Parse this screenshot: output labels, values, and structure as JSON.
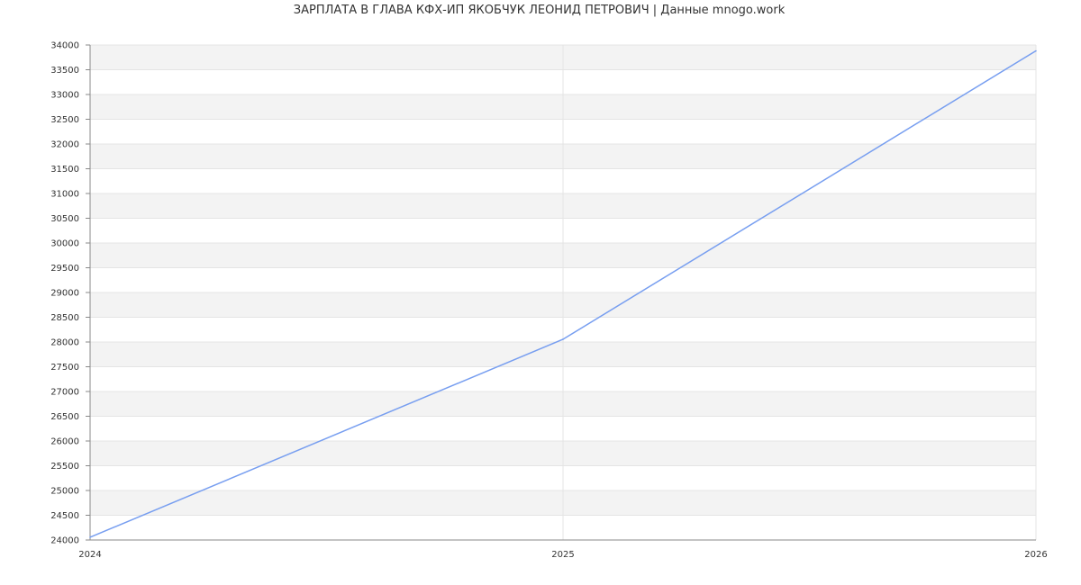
{
  "chart_data": {
    "type": "line",
    "title": "ЗАРПЛАТА В ГЛАВА КФХ-ИП ЯКОБЧУК ЛЕОНИД ПЕТРОВИЧ | Данные mnogo.work",
    "xlabel": "",
    "ylabel": "",
    "x": [
      2024,
      2025,
      2026
    ],
    "xticks": [
      "2024",
      "2025",
      "2026"
    ],
    "series": [
      {
        "values": [
          24055,
          28055,
          33882
        ]
      }
    ],
    "ylim": [
      24000,
      34000
    ],
    "ytick_step": 500,
    "grid": true,
    "line_color": "#779ef0",
    "band_color": "#f3f3f3"
  }
}
